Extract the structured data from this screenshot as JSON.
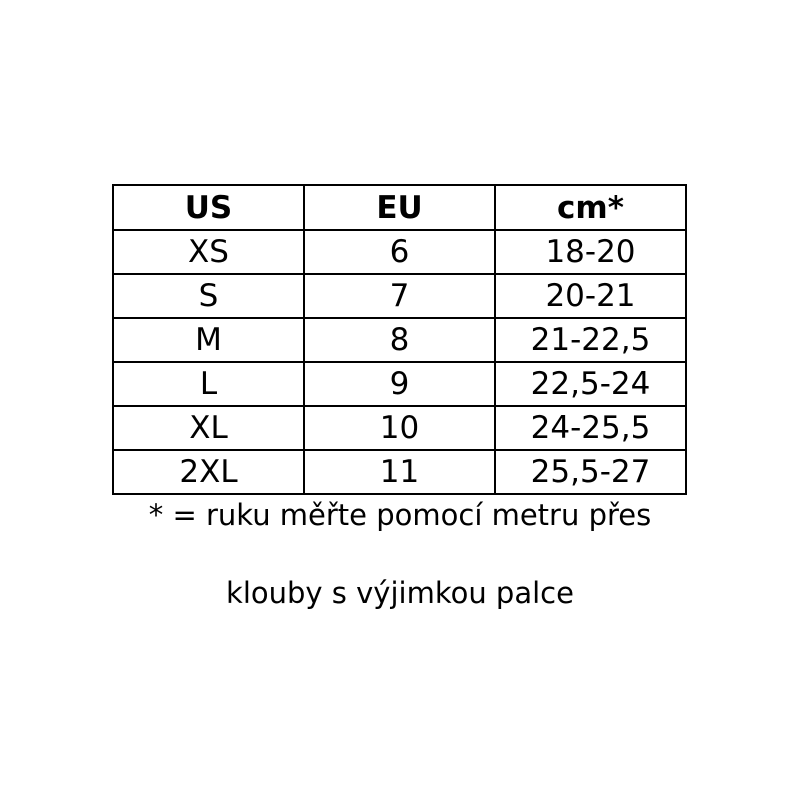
{
  "table": {
    "headers": [
      "US",
      "EU",
      "cm*"
    ],
    "rows": [
      [
        "XS",
        "6",
        "18-20"
      ],
      [
        "S",
        "7",
        "20-21"
      ],
      [
        "M",
        "8",
        "21-22,5"
      ],
      [
        "L",
        "9",
        "22,5-24"
      ],
      [
        "XL",
        "10",
        "24-25,5"
      ],
      [
        "2XL",
        "11",
        "25,5-27"
      ]
    ]
  },
  "footnote": {
    "line1": "* = ruku měřte pomocí metru přes",
    "line2": "klouby s výjimkou palce"
  }
}
